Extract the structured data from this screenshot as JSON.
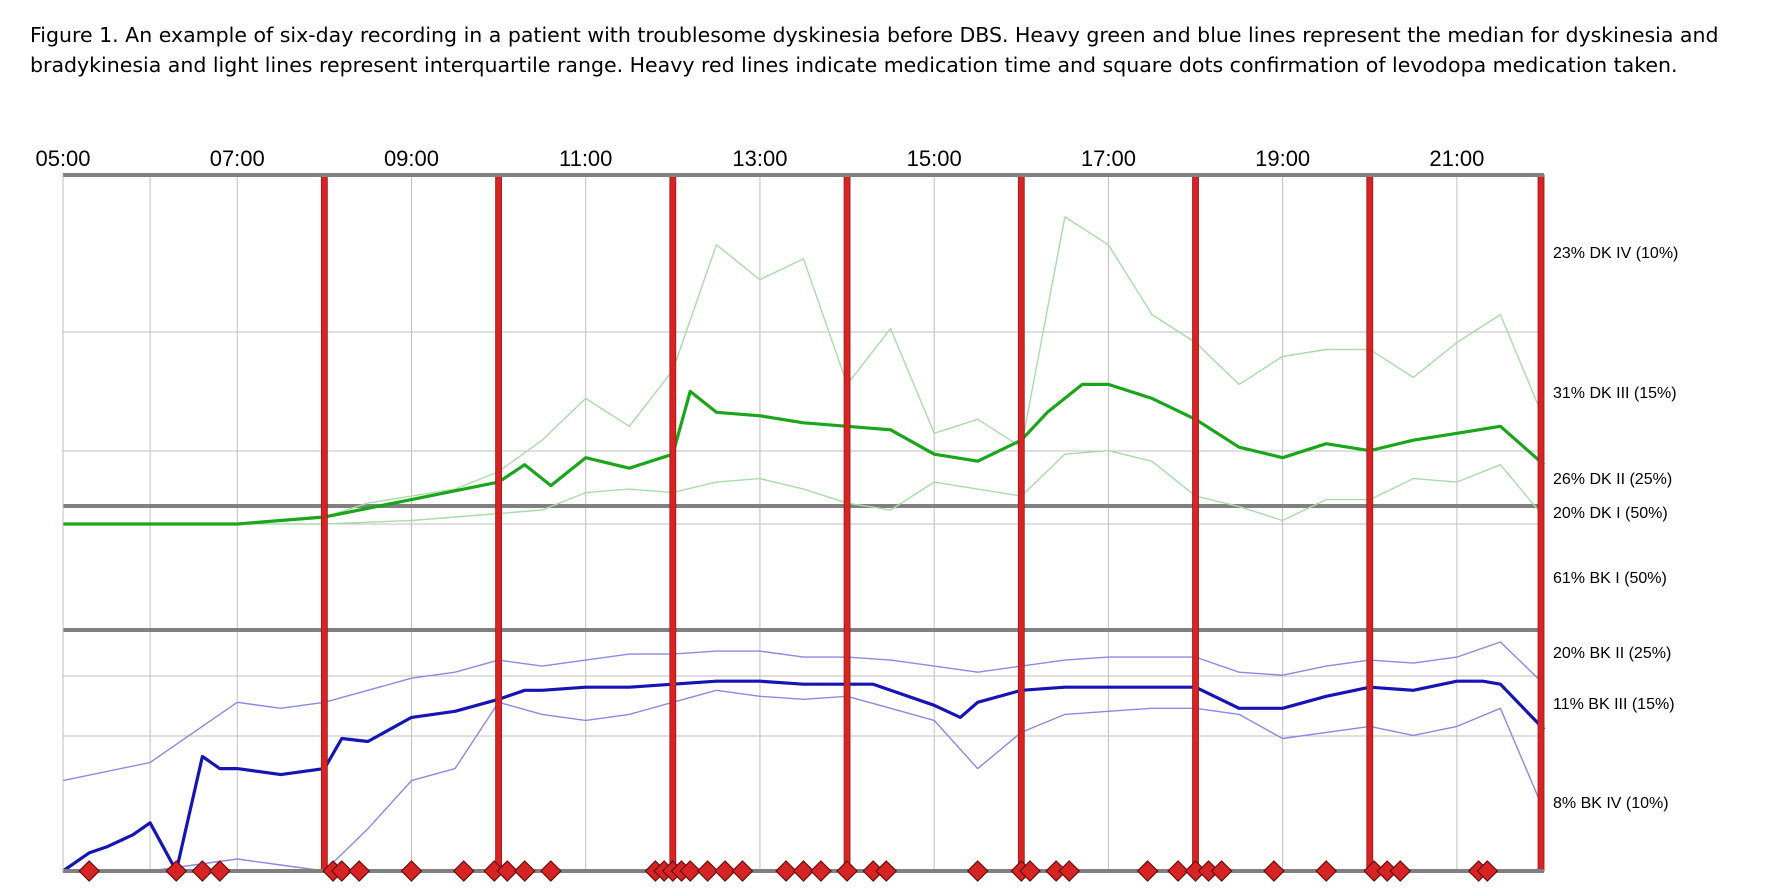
{
  "caption": "Figure 1. An example of six-day recording in a patient with troublesome dyskinesia before DBS. Heavy green and blue lines represent the median for dyskinesia and bradykinesia and light lines represent interquartile range. Heavy red lines indicate medication time and square dots confirmation of levodopa medication taken.",
  "colors": {
    "dk_median": "#1aa61a",
    "dk_iqr": "#a8dca8",
    "bk_median": "#1515b5",
    "bk_iqr": "#8a8ae0",
    "medication": "#d62424",
    "dots": "#d62424",
    "grid": "#bfbfbf",
    "axis": "#808080"
  },
  "chart_data": {
    "type": "line",
    "title": "",
    "xlabel": "",
    "ylabel": "",
    "x_ticks": [
      "05:00",
      "07:00",
      "09:00",
      "11:00",
      "13:00",
      "15:00",
      "17:00",
      "19:00",
      "21:00"
    ],
    "xlim_hours": [
      5.0,
      22.0
    ],
    "grid": true,
    "dyskinesia_levels": [
      {
        "label": "23% DK IV (10%)"
      },
      {
        "label": "31% DK III (15%)"
      },
      {
        "label": "26% DK II (25%)"
      },
      {
        "label": "20% DK I (50%)"
      }
    ],
    "bradykinesia_levels": [
      {
        "label": "61% BK I (50%)"
      },
      {
        "label": "20% BK II (25%)"
      },
      {
        "label": "11% BK III (15%)"
      },
      {
        "label": "8% BK IV (10%)"
      }
    ],
    "medication_times": [
      8.0,
      10.0,
      12.0,
      14.0,
      16.0,
      18.0,
      20.0,
      22.0
    ],
    "levodopa_confirmations": [
      5.3,
      6.3,
      6.6,
      6.8,
      8.1,
      8.2,
      8.4,
      9.0,
      9.6,
      9.95,
      10.1,
      10.3,
      10.6,
      11.8,
      11.9,
      12.0,
      12.1,
      12.2,
      12.4,
      12.6,
      12.8,
      13.3,
      13.5,
      13.7,
      14.0,
      14.3,
      14.45,
      15.5,
      16.0,
      16.1,
      16.4,
      16.55,
      17.45,
      17.8,
      18.0,
      18.15,
      18.3,
      18.9,
      19.5,
      20.05,
      20.2,
      20.35,
      21.25,
      21.35
    ],
    "series": [
      {
        "name": "Dyskinesia median",
        "scale": "DK",
        "x": [
          5,
          6,
          7,
          8,
          9,
          10,
          10.3,
          10.6,
          11,
          11.5,
          12,
          12.2,
          12.5,
          13,
          13.5,
          14,
          14.5,
          15,
          15.5,
          16,
          16.3,
          16.7,
          17,
          17.5,
          18,
          18.5,
          19,
          19.5,
          20,
          20.5,
          21,
          21.5,
          22
        ],
        "values": [
          0.0,
          0.0,
          0.0,
          0.1,
          0.35,
          0.6,
          0.85,
          0.55,
          0.95,
          0.8,
          1.0,
          1.9,
          1.6,
          1.55,
          1.45,
          1.4,
          1.35,
          1.0,
          0.9,
          1.2,
          1.6,
          2.0,
          2.0,
          1.8,
          1.5,
          1.1,
          0.95,
          1.15,
          1.05,
          1.2,
          1.3,
          1.4,
          0.85
        ]
      },
      {
        "name": "Dyskinesia upper IQR",
        "scale": "DK",
        "x": [
          5,
          7,
          8,
          8.5,
          9,
          9.5,
          10,
          10.5,
          11,
          11.5,
          12,
          12.5,
          13,
          13.5,
          14,
          14.5,
          15,
          15.5,
          16,
          16.5,
          17,
          17.5,
          18,
          18.5,
          19,
          19.5,
          20,
          20.5,
          21,
          21.5,
          22
        ],
        "values": [
          0.0,
          0.0,
          0.1,
          0.3,
          0.4,
          0.5,
          0.75,
          1.2,
          1.8,
          1.4,
          2.2,
          4.0,
          3.5,
          3.8,
          2.0,
          2.8,
          1.3,
          1.5,
          1.1,
          4.4,
          4.0,
          3.0,
          2.6,
          2.0,
          2.4,
          2.5,
          2.5,
          2.1,
          2.6,
          3.0,
          1.5
        ]
      },
      {
        "name": "Dyskinesia lower IQR",
        "scale": "DK",
        "x": [
          5,
          8,
          9,
          10,
          10.5,
          11,
          11.5,
          12,
          12.5,
          13,
          13.5,
          14,
          14.5,
          15,
          15.5,
          16,
          16.5,
          17,
          17.5,
          18,
          18.5,
          19,
          19.5,
          20,
          20.5,
          21,
          21.5,
          22
        ],
        "values": [
          0.0,
          0.0,
          0.05,
          0.15,
          0.2,
          0.45,
          0.5,
          0.45,
          0.6,
          0.65,
          0.5,
          0.3,
          0.2,
          0.6,
          0.5,
          0.4,
          1.0,
          1.05,
          0.9,
          0.4,
          0.25,
          0.05,
          0.35,
          0.35,
          0.65,
          0.6,
          0.85,
          0.1
        ]
      },
      {
        "name": "Bradykinesia median",
        "scale": "BK",
        "x": [
          5,
          5.3,
          5.5,
          5.8,
          6.0,
          6.3,
          6.6,
          6.8,
          7.0,
          7.5,
          8.0,
          8.2,
          8.5,
          9.0,
          9.5,
          10.0,
          10.3,
          10.5,
          11.0,
          11.5,
          12.0,
          12.5,
          13.0,
          13.5,
          14.0,
          14.3,
          14.5,
          15.0,
          15.3,
          15.5,
          16.0,
          16.5,
          17.0,
          17.5,
          18.0,
          18.5,
          19.0,
          19.5,
          20.0,
          20.5,
          21.0,
          21.3,
          21.5,
          22.0
        ],
        "values": [
          4.0,
          3.7,
          3.6,
          3.4,
          3.2,
          4.0,
          2.1,
          2.3,
          2.3,
          2.4,
          2.3,
          1.8,
          1.85,
          1.45,
          1.35,
          1.15,
          1.0,
          1.0,
          0.95,
          0.95,
          0.9,
          0.85,
          0.85,
          0.9,
          0.9,
          0.9,
          1.0,
          1.25,
          1.45,
          1.2,
          1.0,
          0.95,
          0.95,
          0.95,
          0.95,
          1.3,
          1.3,
          1.1,
          0.95,
          1.0,
          0.85,
          0.85,
          0.9,
          1.65
        ]
      },
      {
        "name": "Bradykinesia upper IQR",
        "scale": "BK",
        "x": [
          5,
          6,
          7,
          7.5,
          8,
          8.5,
          9,
          9.5,
          10,
          10.5,
          11,
          11.5,
          12,
          12.5,
          13,
          13.5,
          14,
          14.5,
          15,
          15.5,
          16,
          16.5,
          17,
          17.5,
          18,
          18.5,
          19,
          19.5,
          20,
          20.5,
          21,
          21.5,
          22
        ],
        "values": [
          2.5,
          2.2,
          1.2,
          1.3,
          1.2,
          1.0,
          0.8,
          0.7,
          0.5,
          0.6,
          0.5,
          0.4,
          0.4,
          0.35,
          0.35,
          0.45,
          0.45,
          0.5,
          0.6,
          0.7,
          0.6,
          0.5,
          0.45,
          0.45,
          0.45,
          0.7,
          0.75,
          0.6,
          0.5,
          0.55,
          0.45,
          0.2,
          0.9
        ]
      },
      {
        "name": "Bradykinesia lower IQR",
        "scale": "BK",
        "x": [
          5,
          6,
          7,
          7.5,
          8,
          8.5,
          9,
          9.5,
          10,
          10.5,
          11,
          11.5,
          12,
          12.5,
          13,
          13.5,
          14,
          14.5,
          15,
          15.5,
          16,
          16.5,
          17,
          17.5,
          18,
          18.5,
          19,
          19.5,
          20,
          20.5,
          21,
          21.5,
          22
        ],
        "values": [
          4.0,
          4.0,
          3.8,
          3.9,
          4.0,
          3.3,
          2.5,
          2.3,
          1.2,
          1.4,
          1.5,
          1.4,
          1.2,
          1.0,
          1.1,
          1.15,
          1.1,
          1.3,
          1.5,
          2.3,
          1.7,
          1.4,
          1.35,
          1.3,
          1.3,
          1.4,
          1.8,
          1.7,
          1.6,
          1.75,
          1.6,
          1.3,
          3.0
        ]
      }
    ]
  }
}
